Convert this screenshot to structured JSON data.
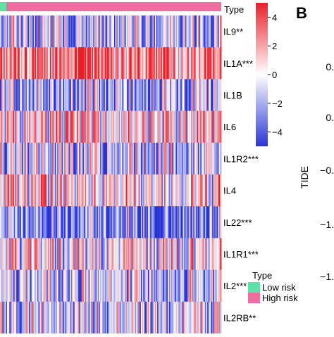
{
  "chart_data": [
    {
      "type": "heatmap",
      "annotation_row_label": "Type",
      "rows": [
        {
          "label": "IL9**",
          "mean_level": -0.3,
          "contrast": 0.95
        },
        {
          "label": "IL1A***",
          "mean_level": 0.7,
          "contrast": 1.0
        },
        {
          "label": "IL1B",
          "mean_level": -0.4,
          "contrast": 1.0
        },
        {
          "label": "IL6",
          "mean_level": 0.2,
          "contrast": 0.9
        },
        {
          "label": "IL1R2***",
          "mean_level": -0.3,
          "contrast": 1.0
        },
        {
          "label": "IL4",
          "mean_level": 0.15,
          "contrast": 0.9
        },
        {
          "label": "IL22***",
          "mean_level": -0.75,
          "contrast": 0.95
        },
        {
          "label": "IL1R1***",
          "mean_level": 0.05,
          "contrast": 0.95
        },
        {
          "label": "IL2***",
          "mean_level": -0.25,
          "contrast": 0.9
        },
        {
          "label": "IL2RB**",
          "mean_level": -0.2,
          "contrast": 0.9
        }
      ],
      "colorbar": {
        "ticks": [
          "4",
          "2",
          "0",
          "−2",
          "−4"
        ],
        "tick_values": [
          4,
          2,
          0,
          -2,
          -4
        ],
        "range": [
          -5,
          5
        ],
        "colors": {
          "high": "#e8202a",
          "mid": "#ffffff",
          "low": "#2a35d6"
        }
      },
      "legend": {
        "title": "Type",
        "items": [
          {
            "label": "Low risk",
            "color": "#5fe0a7"
          },
          {
            "label": "High risk",
            "color": "#ee6f9f"
          }
        ]
      },
      "annotation_colors": {
        "low": "#5fe0a7",
        "high": "#ee6f9f"
      },
      "low_risk_fraction": 0.03
    },
    {
      "type": "scatter",
      "panel_label": "B",
      "ylabel": "TIDE",
      "y_tick_labels": [
        "0.",
        "0.",
        "−0.",
        "−1.",
        "−1."
      ]
    }
  ]
}
